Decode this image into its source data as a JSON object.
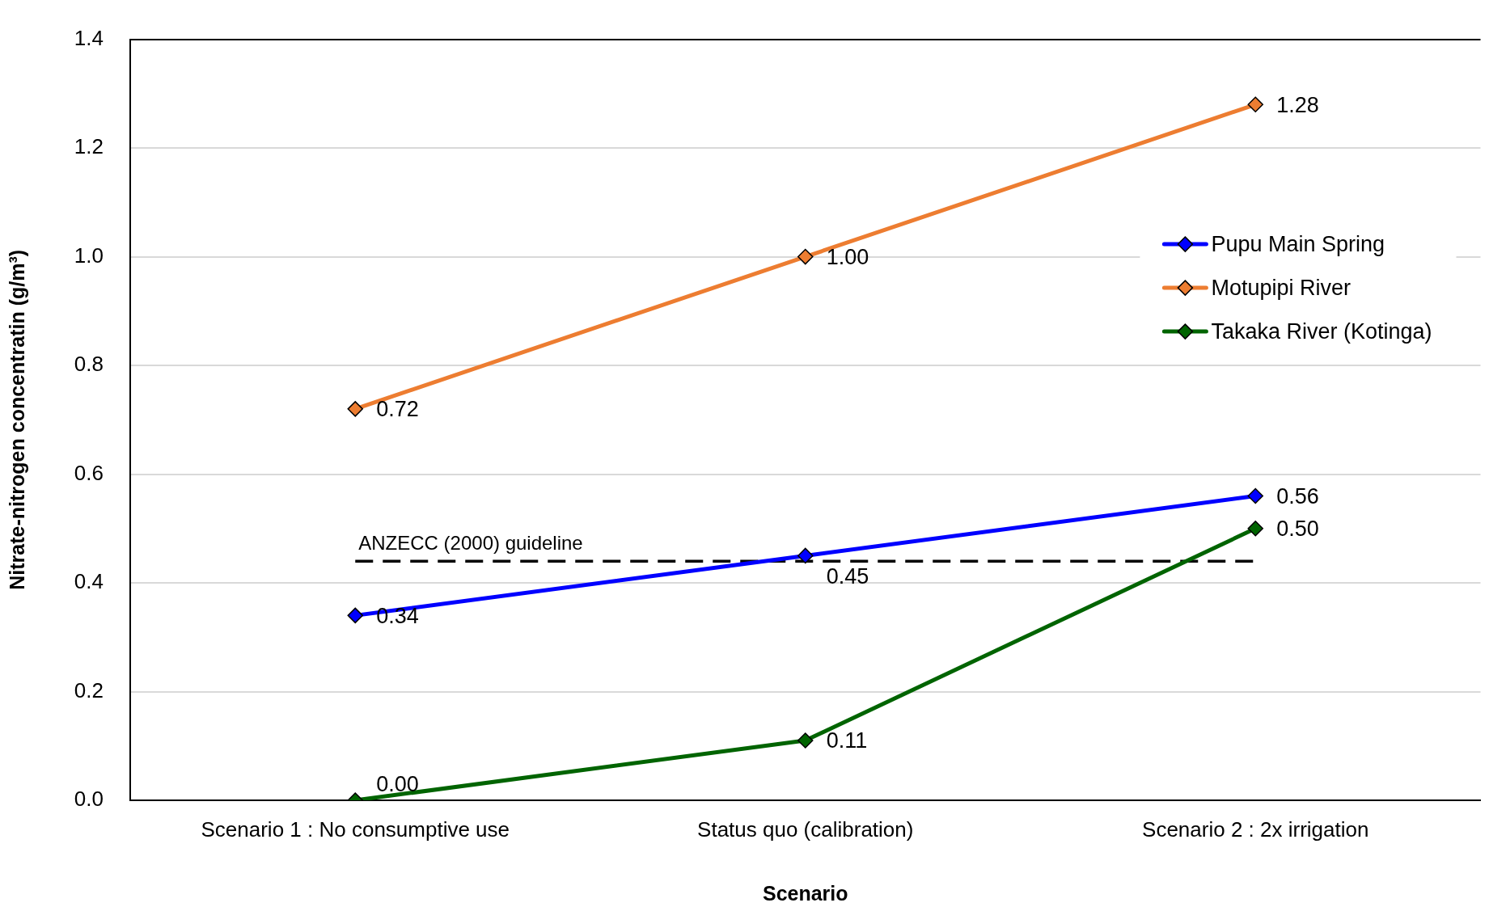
{
  "chart_data": {
    "type": "line",
    "xlabel": "Scenario",
    "ylabel": "Nitrate-nitrogen concentratin (g/m³)",
    "categories": [
      "Scenario 1 : No consumptive use",
      "Status quo (calibration)",
      "Scenario 2 : 2x irrigation"
    ],
    "series": [
      {
        "name": "Pupu Main Spring",
        "color": "#0000ff",
        "values": [
          0.34,
          0.45,
          0.56
        ],
        "value_labels": [
          "0.34",
          "0.45",
          "0.56"
        ]
      },
      {
        "name": "Motupipi River",
        "color": "#ed7d31",
        "values": [
          0.72,
          1.0,
          1.28
        ],
        "value_labels": [
          "0.72",
          "1.00",
          "1.28"
        ]
      },
      {
        "name": "Takaka River (Kotinga)",
        "color": "#006400",
        "values": [
          0.0,
          0.11,
          0.5
        ],
        "value_labels": [
          "0.00",
          "0.11",
          "0.50"
        ]
      }
    ],
    "ylim": [
      0,
      1.4
    ],
    "yticks": [
      {
        "value": 0,
        "label": "0.0"
      },
      0.2,
      0.4,
      0.6,
      0.8,
      {
        "value": 1,
        "label": "1.0"
      },
      1.2,
      1.4
    ],
    "ref_lines": [
      {
        "axis": "y",
        "value": 0.44,
        "label": "ANZECC (2000) guideline",
        "color": "#000000",
        "line_style": "dashed"
      }
    ],
    "grid": "y",
    "legend": "top right",
    "marker": "diamond",
    "line_style": "solid"
  }
}
